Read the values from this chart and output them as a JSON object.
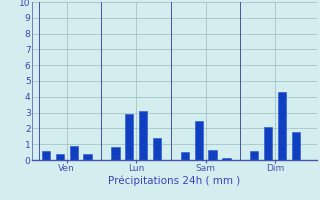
{
  "bars": [
    {
      "x": 1,
      "val": 0.6
    },
    {
      "x": 2,
      "val": 0.4
    },
    {
      "x": 3,
      "val": 0.9
    },
    {
      "x": 4,
      "val": 0.4
    },
    {
      "x": 6,
      "val": 0.8
    },
    {
      "x": 7,
      "val": 2.9
    },
    {
      "x": 8,
      "val": 3.1
    },
    {
      "x": 9,
      "val": 1.4
    },
    {
      "x": 11,
      "val": 0.5
    },
    {
      "x": 12,
      "val": 2.5
    },
    {
      "x": 13,
      "val": 0.65
    },
    {
      "x": 14,
      "val": 0.15
    },
    {
      "x": 16,
      "val": 0.55
    },
    {
      "x": 17,
      "val": 2.1
    },
    {
      "x": 18,
      "val": 4.3
    },
    {
      "x": 19,
      "val": 1.8
    }
  ],
  "day_labels": [
    {
      "x": 2.5,
      "label": "Ven"
    },
    {
      "x": 7.5,
      "label": "Lun"
    },
    {
      "x": 12.5,
      "label": "Sam"
    },
    {
      "x": 17.5,
      "label": "Dim"
    }
  ],
  "day_lines_x": [
    0.5,
    5.0,
    10.0,
    15.0,
    20.5
  ],
  "bar_color": "#1040c0",
  "bar_edge_color": "#3060e0",
  "background_color": "#d4eef0",
  "grid_color": "#9abcbe",
  "axis_color": "#4455aa",
  "text_color": "#4040bb",
  "xlabel": "Précipitations 24h ( mm )",
  "ylim": [
    0,
    10
  ],
  "yticks": [
    0,
    1,
    2,
    3,
    4,
    5,
    6,
    7,
    8,
    9,
    10
  ],
  "bar_width": 0.6,
  "xlim": [
    0.0,
    20.5
  ]
}
